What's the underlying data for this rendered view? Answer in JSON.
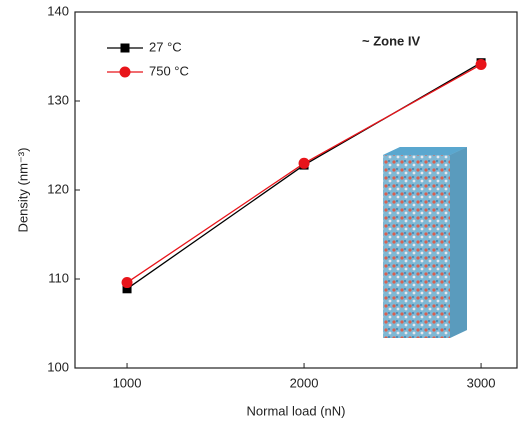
{
  "chart_data": {
    "type": "line",
    "annotation": "~ Zone IV",
    "x_label": "Normal load (nN)",
    "y_label": "Density (nm⁻³)",
    "x": [
      1000,
      2000,
      3000
    ],
    "series": [
      {
        "name": "27 °C",
        "color": "#000000",
        "marker": "square",
        "values": [
          108.9,
          122.8,
          134.3
        ]
      },
      {
        "name": "750 °C",
        "color": "#e8141a",
        "marker": "circle",
        "values": [
          109.6,
          123.0,
          134.1
        ]
      }
    ],
    "xlim": [
      706,
      3203
    ],
    "ylim": [
      100,
      140
    ],
    "xticks": [
      1000,
      2000,
      3000
    ],
    "yticks": [
      100,
      110,
      120,
      130,
      140
    ],
    "legend": "upper left",
    "grid": false
  }
}
